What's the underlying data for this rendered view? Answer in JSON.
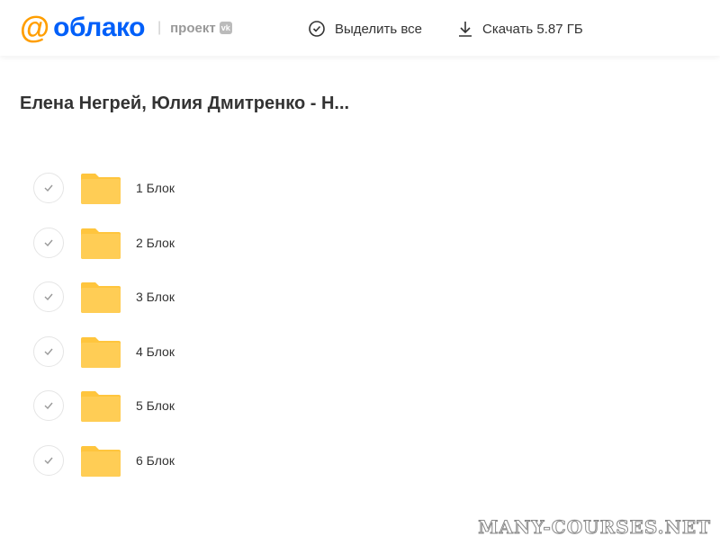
{
  "header": {
    "logo_at": "@",
    "logo_text": "облако",
    "separator": "|",
    "project_label": "проект",
    "vk_badge": "vk",
    "select_all": "Выделить все",
    "download": "Скачать 5.87 ГБ"
  },
  "title": "Елена Негрей, Юлия Дмитренко - Н...",
  "folders": [
    {
      "name": "1 Блок"
    },
    {
      "name": "2 Блок"
    },
    {
      "name": "3 Блок"
    },
    {
      "name": "4 Блок"
    },
    {
      "name": "5 Блок"
    },
    {
      "name": "6 Блок"
    }
  ],
  "watermark": "MANY-COURSES.NET",
  "colors": {
    "accent_orange": "#ff9e00",
    "brand_blue": "#005ff9",
    "folder": "#ffc53d"
  }
}
